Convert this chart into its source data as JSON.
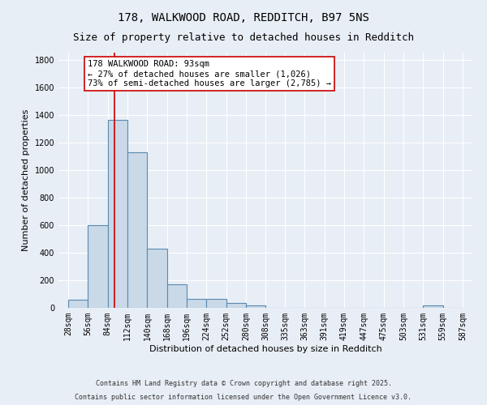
{
  "title_line1": "178, WALKWOOD ROAD, REDDITCH, B97 5NS",
  "title_line2": "Size of property relative to detached houses in Redditch",
  "xlabel": "Distribution of detached houses by size in Redditch",
  "ylabel": "Number of detached properties",
  "bar_left_edges": [
    28,
    56,
    84,
    112,
    140,
    168,
    196,
    224,
    252,
    280,
    308,
    335,
    363,
    391,
    419,
    447,
    475,
    503,
    531,
    559
  ],
  "bar_heights": [
    60,
    600,
    1360,
    1130,
    430,
    170,
    65,
    65,
    35,
    15,
    0,
    0,
    0,
    0,
    0,
    0,
    0,
    0,
    15,
    0
  ],
  "bin_width": 28,
  "bar_color": "#c9d9e8",
  "bar_edge_color": "#5a8ab0",
  "background_color": "#e8eef5",
  "grid_color": "#ffffff",
  "red_line_x": 93,
  "red_line_color": "#cc0000",
  "annotation_text": "178 WALKWOOD ROAD: 93sqm\n← 27% of detached houses are smaller (1,026)\n73% of semi-detached houses are larger (2,785) →",
  "annotation_box_color": "#ffffff",
  "annotation_box_edge": "#cc0000",
  "ylim": [
    0,
    1850
  ],
  "yticks": [
    0,
    200,
    400,
    600,
    800,
    1000,
    1200,
    1400,
    1600,
    1800
  ],
  "xtick_labels": [
    "28sqm",
    "56sqm",
    "84sqm",
    "112sqm",
    "140sqm",
    "168sqm",
    "196sqm",
    "224sqm",
    "252sqm",
    "280sqm",
    "308sqm",
    "335sqm",
    "363sqm",
    "391sqm",
    "419sqm",
    "447sqm",
    "475sqm",
    "503sqm",
    "531sqm",
    "559sqm",
    "587sqm"
  ],
  "xtick_positions": [
    28,
    56,
    84,
    112,
    140,
    168,
    196,
    224,
    252,
    280,
    308,
    335,
    363,
    391,
    419,
    447,
    475,
    503,
    531,
    559,
    587
  ],
  "footer_line1": "Contains HM Land Registry data © Crown copyright and database right 2025.",
  "footer_line2": "Contains public sector information licensed under the Open Government Licence v3.0.",
  "title_fontsize": 10,
  "subtitle_fontsize": 9,
  "axis_label_fontsize": 8,
  "tick_fontsize": 7,
  "annotation_fontsize": 7.5,
  "footer_fontsize": 6
}
